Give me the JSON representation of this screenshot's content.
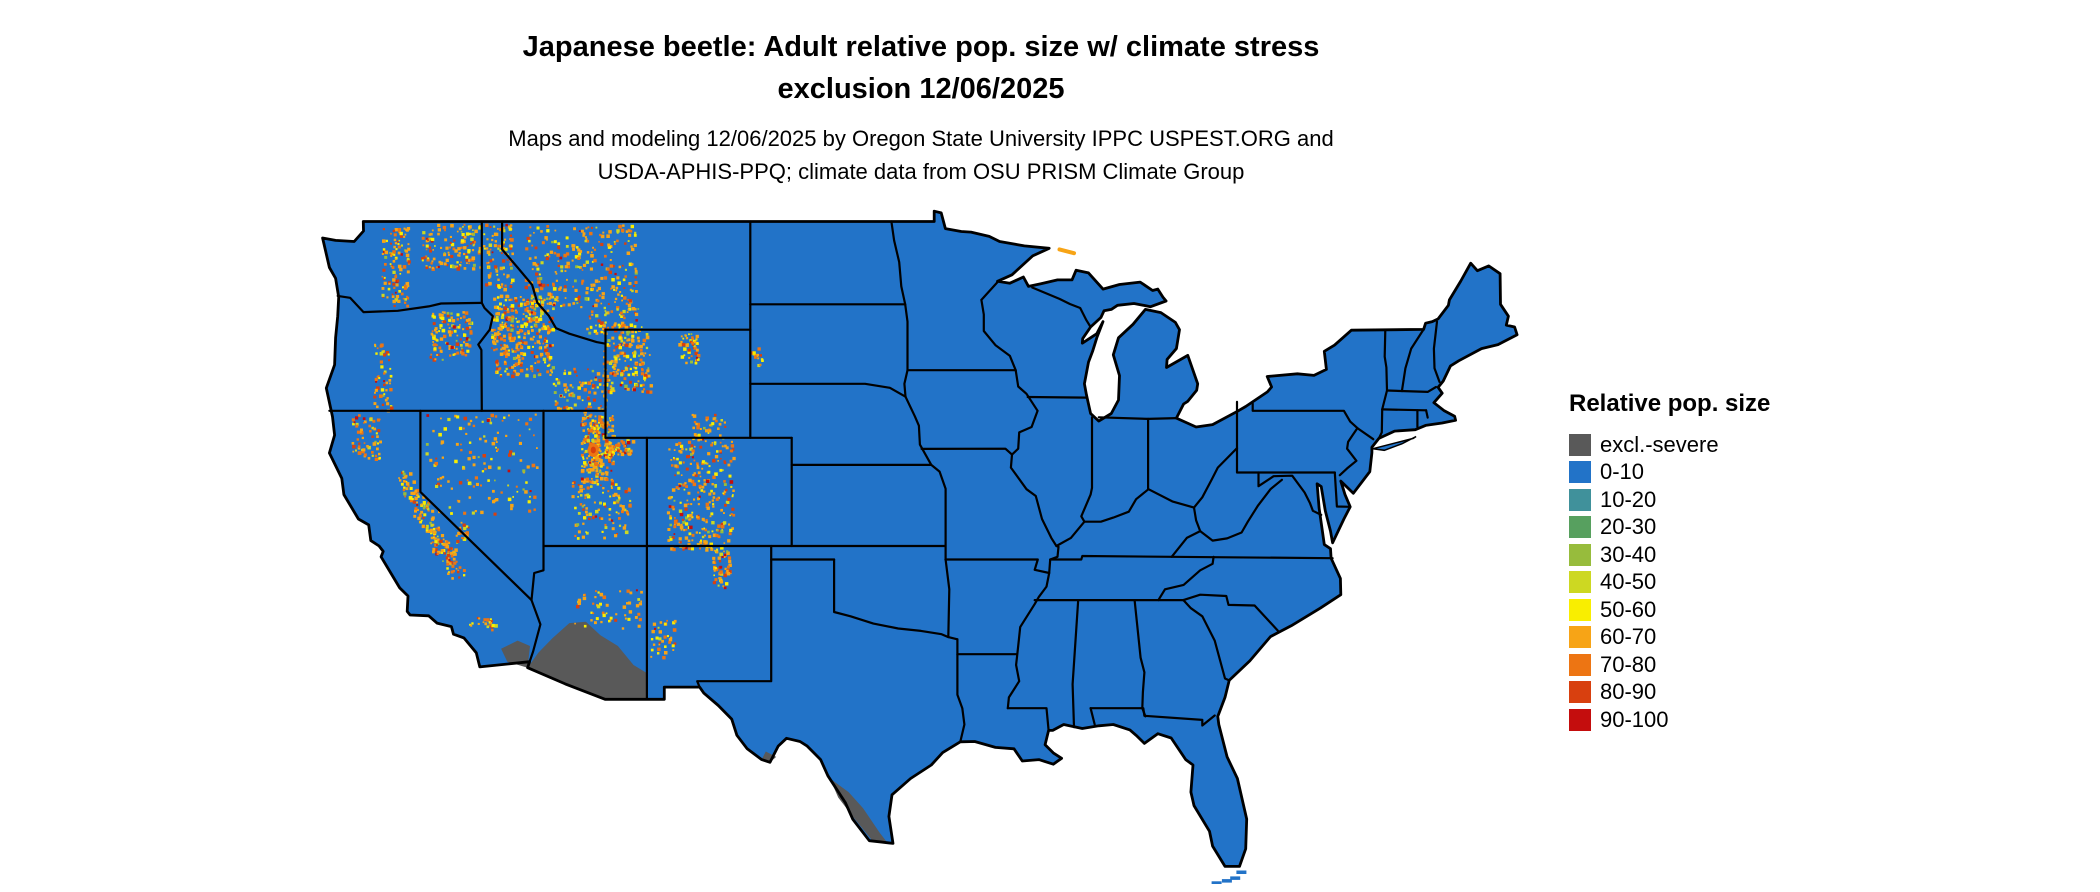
{
  "header": {
    "title_line1": "Japanese beetle: Adult relative pop. size w/ climate stress",
    "title_line2": "exclusion 12/06/2025",
    "subtitle_line1": "Maps and modeling 12/06/2025 by Oregon State University IPPC USPEST.ORG and",
    "subtitle_line2": "USDA-APHIS-PPQ; climate data from OSU PRISM Climate Group"
  },
  "legend": {
    "title": "Relative pop. size",
    "items": [
      {
        "label": "excl.-severe",
        "color": "#595959"
      },
      {
        "label": "0-10",
        "color": "#2273c8"
      },
      {
        "label": "10-20",
        "color": "#40919b"
      },
      {
        "label": "20-30",
        "color": "#57a05f"
      },
      {
        "label": "30-40",
        "color": "#97bc3c"
      },
      {
        "label": "40-50",
        "color": "#cdd822"
      },
      {
        "label": "50-60",
        "color": "#f9ee00"
      },
      {
        "label": "60-70",
        "color": "#f7a416"
      },
      {
        "label": "70-80",
        "color": "#ed7513"
      },
      {
        "label": "80-90",
        "color": "#d8400f"
      },
      {
        "label": "90-100",
        "color": "#c40d0d"
      }
    ]
  },
  "map": {
    "land_color": "#2273c8",
    "excluded_color": "#595959",
    "border_color": "#000000",
    "background_color": "#ffffff"
  }
}
